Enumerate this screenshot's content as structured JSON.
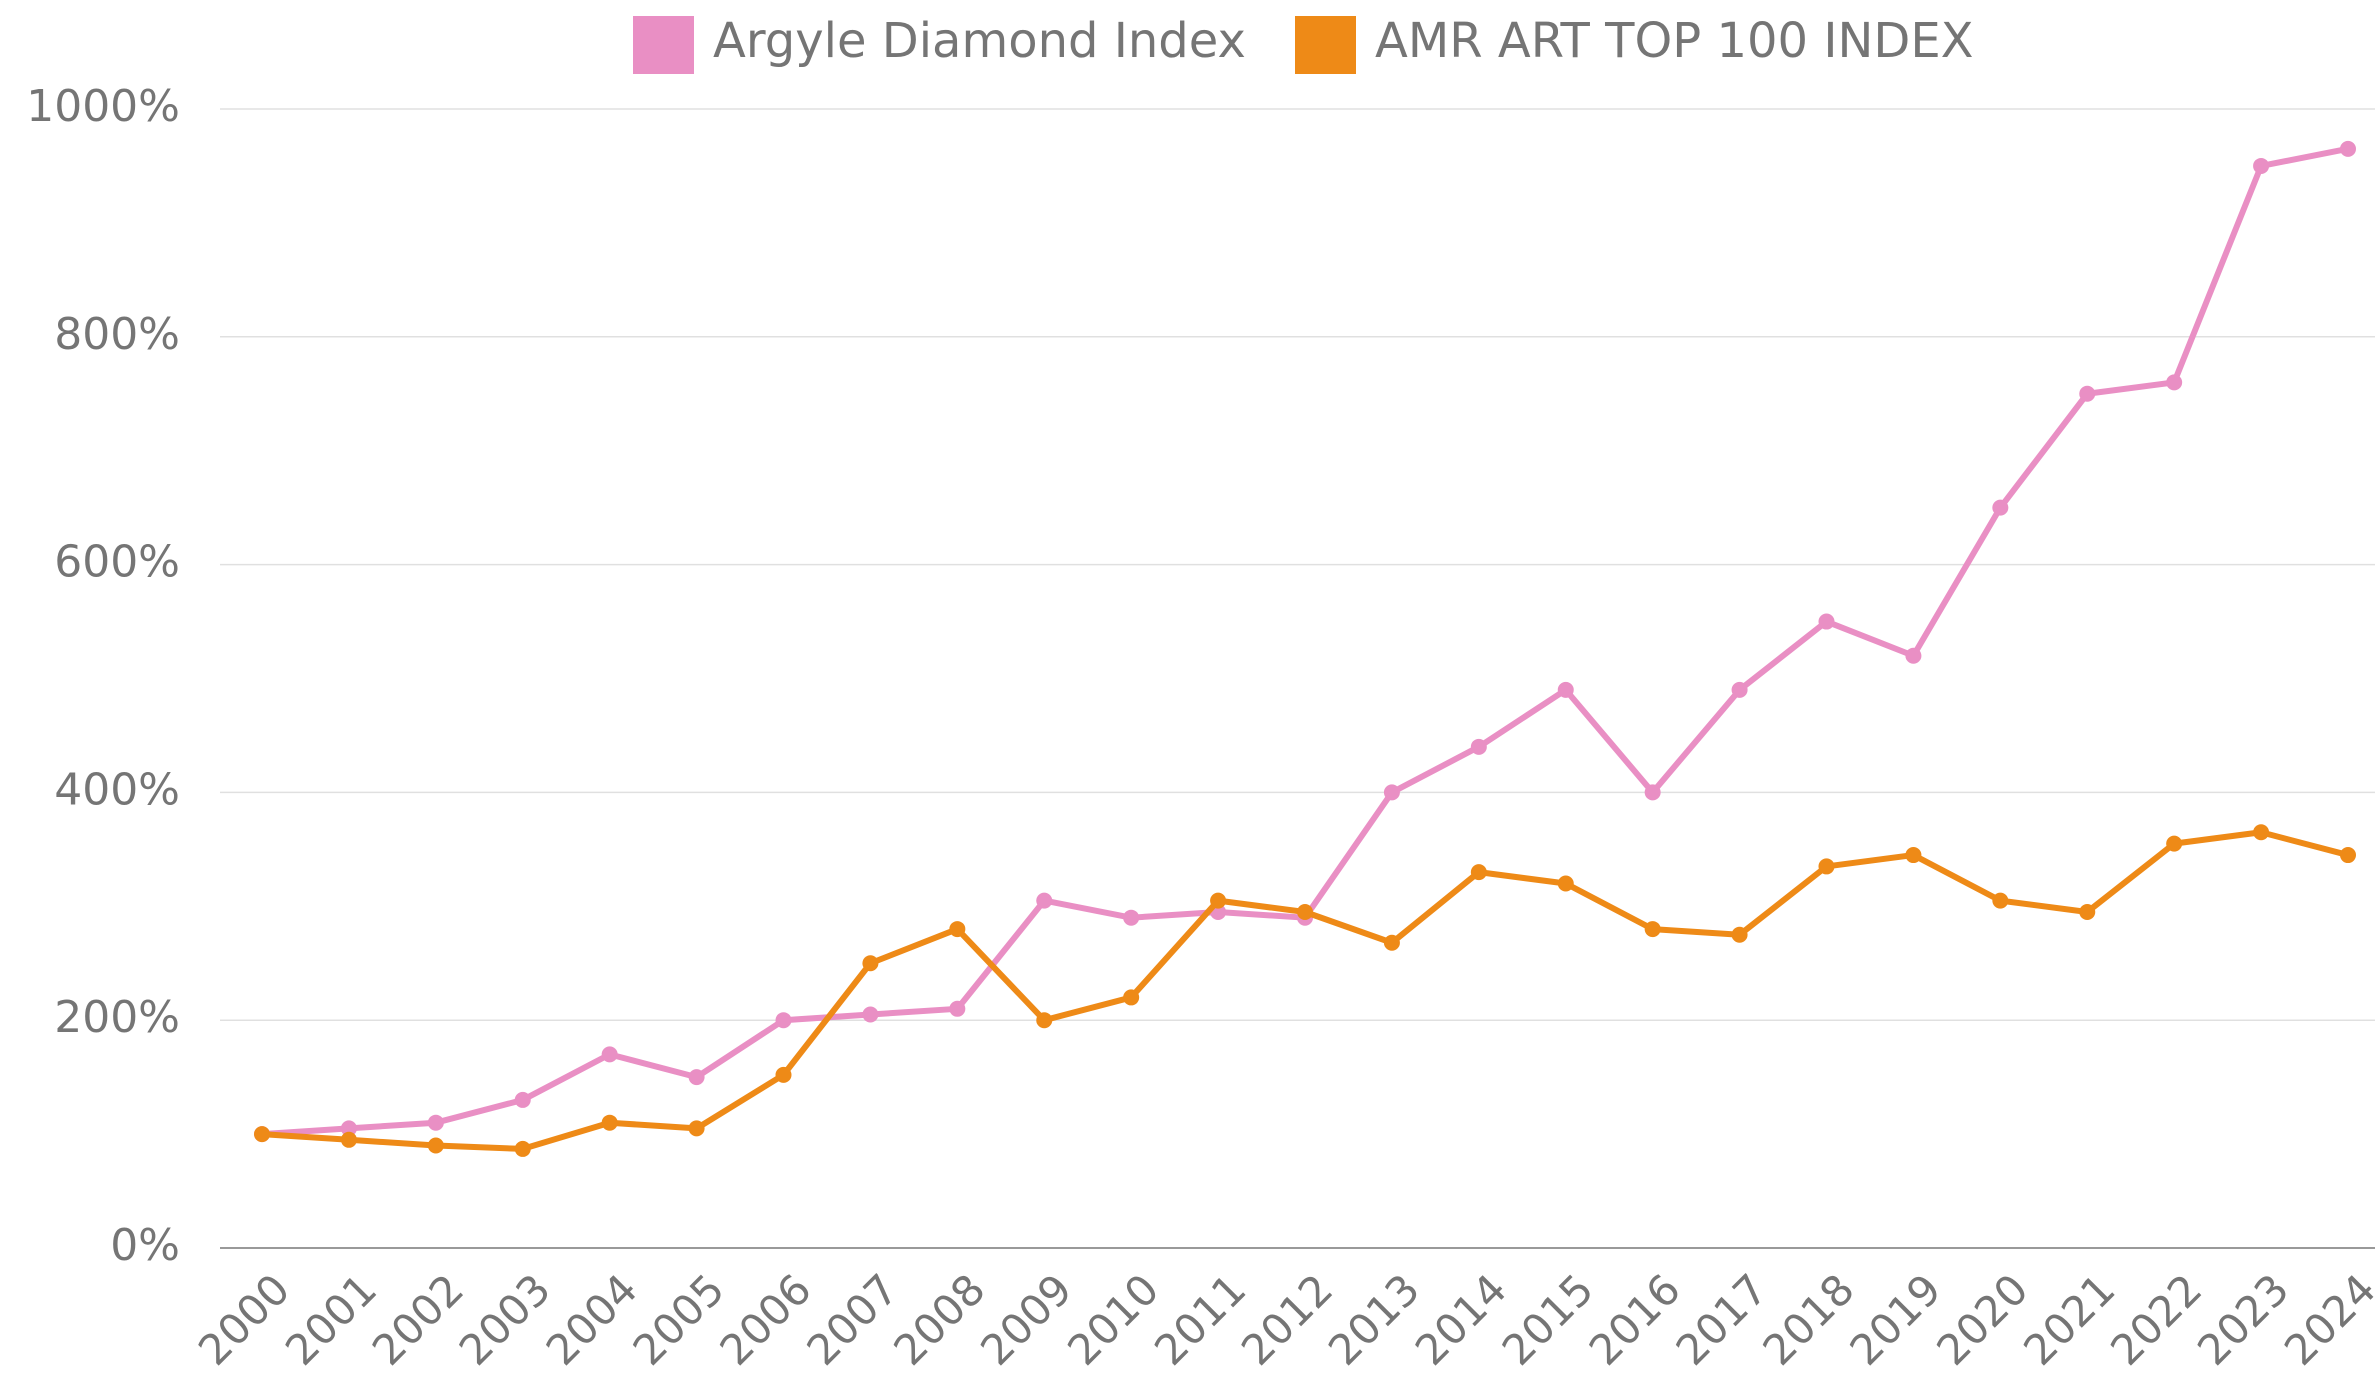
{
  "chart_data": {
    "type": "line",
    "categories": [
      "2000",
      "2001",
      "2002",
      "2003",
      "2004",
      "2005",
      "2006",
      "2007",
      "2008",
      "2009",
      "2010",
      "2011",
      "2012",
      "2013",
      "2014",
      "2015",
      "2016",
      "2017",
      "2018",
      "2019",
      "2020",
      "2021",
      "2022",
      "2023",
      "2024"
    ],
    "series": [
      {
        "name": "Argyle Diamond Index",
        "color": "#e98fc4",
        "values": [
          100,
          105,
          110,
          130,
          170,
          150,
          200,
          205,
          210,
          305,
          290,
          295,
          290,
          400,
          440,
          490,
          400,
          490,
          550,
          520,
          650,
          750,
          760,
          950,
          965
        ]
      },
      {
        "name": "AMR ART TOP 100 INDEX",
        "color": "#ee8a17",
        "values": [
          100,
          95,
          90,
          87,
          110,
          105,
          152,
          250,
          280,
          200,
          220,
          305,
          295,
          268,
          330,
          320,
          280,
          275,
          335,
          345,
          305,
          295,
          355,
          365,
          345
        ]
      }
    ],
    "ylim": [
      0,
      1000
    ],
    "yticks": [
      {
        "value": 0,
        "label": "0%"
      },
      {
        "value": 200,
        "label": "200%"
      },
      {
        "value": 400,
        "label": "400%"
      },
      {
        "value": 600,
        "label": "600%"
      },
      {
        "value": 800,
        "label": "800%"
      },
      {
        "value": 1000,
        "label": "1000%"
      }
    ],
    "grid": true,
    "legend": "top"
  }
}
